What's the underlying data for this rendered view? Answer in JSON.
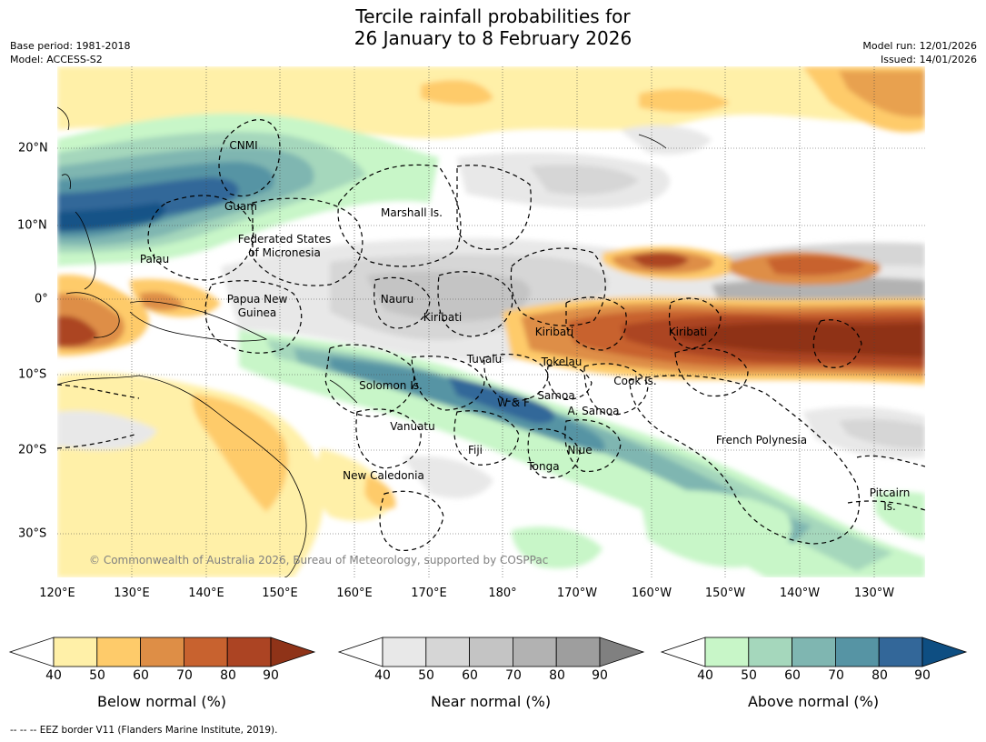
{
  "title": {
    "line1": "Tercile rainfall probabilities for",
    "line2": "26 January to 8 February 2026"
  },
  "meta": {
    "base_period": "Base period: 1981-2018",
    "model": "Model: ACCESS-S2",
    "model_run": "Model run: 12/01/2026",
    "issued": "Issued: 14/01/2026"
  },
  "copyright": "© Commonwealth of Australia 2026, Bureau of Meteorology, supported by COSPPac",
  "footnote": "--  --  -- EEZ border V11 (Flanders Marine Institute, 2019).",
  "map": {
    "lon_labels": [
      "120°E",
      "130°E",
      "140°E",
      "150°E",
      "160°E",
      "170°E",
      "180°",
      "170°W",
      "160°W",
      "150°W",
      "140°W",
      "130°W"
    ],
    "lat_labels": [
      "20°N",
      "10°N",
      "0°",
      "10°S",
      "20°S",
      "30°S"
    ],
    "regions": {
      "cnmi": "CNMI",
      "guam": "Guam",
      "palau": "Palau",
      "fsm_line1": "Federated States",
      "fsm_line2": "of Micronesia",
      "marshall": "Marshall Is.",
      "png_line1": "Papua New",
      "png_line2": "Guinea",
      "nauru": "Nauru",
      "kiribati_w": "Kiribati",
      "kiribati_c": "Kiribati",
      "kiribati_e": "Kiribati",
      "tuvalu": "Tuvalu",
      "tokelau": "Tokelau",
      "solomon": "Solomon Is.",
      "wf": "W & F",
      "samoa": "Samoa",
      "asamoa": "A. Samoa",
      "cook": "Cook Is.",
      "vanuatu": "Vanuatu",
      "fiji": "Fiji",
      "niue": "Niue",
      "tonga": "Tonga",
      "french_polynesia": "French Polynesia",
      "new_caledonia": "New Caledonia",
      "pitcairn_line1": "Pitcairn",
      "pitcairn_line2": "Is."
    }
  },
  "legend": {
    "below": {
      "title": "Below normal (%)",
      "ticks": [
        "40",
        "50",
        "60",
        "70",
        "80",
        "90"
      ],
      "colors": [
        "#ffffff",
        "#fff0a8",
        "#fecb6a",
        "#de8e46",
        "#c8622f",
        "#ac4423",
        "#8f3318"
      ]
    },
    "near": {
      "title": "Near normal (%)",
      "ticks": [
        "40",
        "50",
        "60",
        "70",
        "80",
        "90"
      ],
      "colors": [
        "#ffffff",
        "#e8e8e8",
        "#d6d6d6",
        "#c4c4c4",
        "#b2b2b2",
        "#9e9e9e",
        "#808080"
      ]
    },
    "above": {
      "title": "Above normal (%)",
      "ticks": [
        "40",
        "50",
        "60",
        "70",
        "80",
        "90"
      ],
      "colors": [
        "#ffffff",
        "#c8f6c8",
        "#a5d7bc",
        "#7fb6b1",
        "#5694a4",
        "#336799",
        "#0e4e82"
      ]
    }
  }
}
